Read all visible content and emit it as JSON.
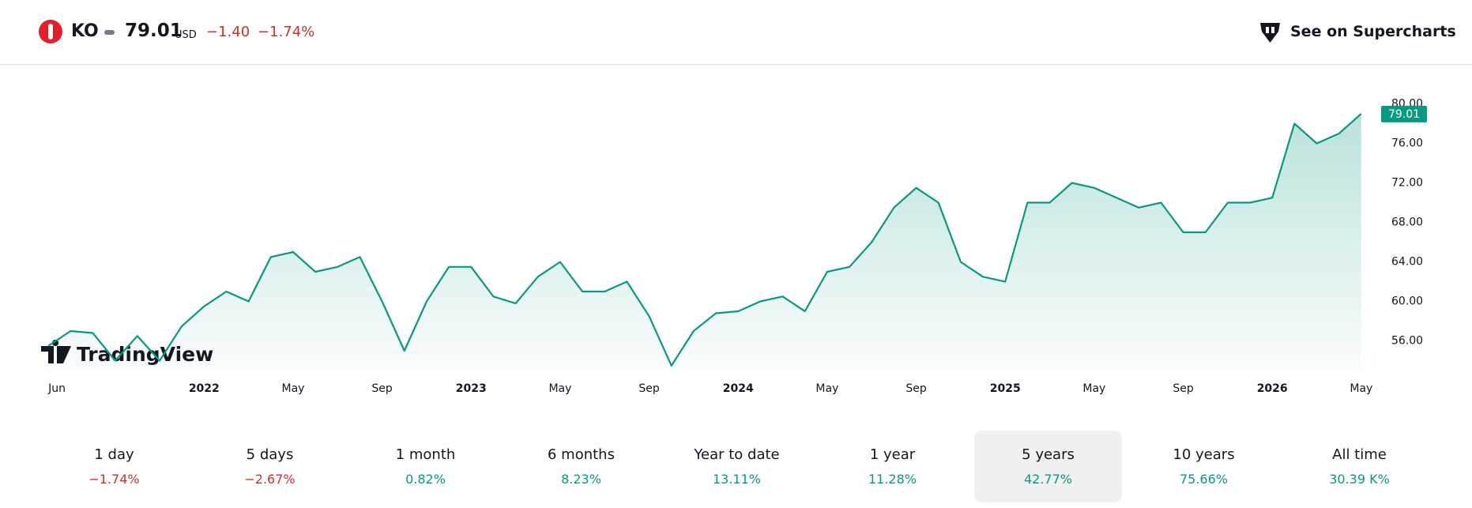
{
  "header": {
    "symbol": "KO",
    "price": "79.01",
    "currency": "USD",
    "change": "−1.40",
    "change_percent": "−1.74%",
    "link": "See on Supercharts"
  },
  "watermark": "TradingView",
  "chart_data": {
    "type": "line",
    "x": [
      "2021-06",
      "2021-07",
      "2021-08",
      "2021-09",
      "2021-10",
      "2021-11",
      "2021-12",
      "2022-01",
      "2022-02",
      "2022-03",
      "2022-04",
      "2022-05",
      "2022-06",
      "2022-07",
      "2022-08",
      "2022-09",
      "2022-10",
      "2022-11",
      "2022-12",
      "2023-01",
      "2023-02",
      "2023-03",
      "2023-04",
      "2023-05",
      "2023-06",
      "2023-07",
      "2023-08",
      "2023-09",
      "2023-10",
      "2023-11",
      "2023-12",
      "2024-01",
      "2024-02",
      "2024-03",
      "2024-04",
      "2024-05",
      "2024-06",
      "2024-07",
      "2024-08",
      "2024-09",
      "2024-10",
      "2024-11",
      "2024-12",
      "2025-01",
      "2025-02",
      "2025-03",
      "2025-04",
      "2025-05",
      "2025-06",
      "2025-07",
      "2025-08",
      "2025-09",
      "2025-10",
      "2025-11",
      "2025-12",
      "2026-01",
      "2026-02",
      "2026-03",
      "2026-04",
      "2026-05"
    ],
    "series": [
      {
        "color": "#089981",
        "values": [
          55.5,
          57.0,
          56.8,
          54.0,
          56.5,
          54.0,
          57.5,
          59.5,
          61.0,
          60.0,
          64.5,
          65.0,
          63.0,
          63.5,
          64.5,
          60.0,
          55.0,
          60.0,
          63.5,
          63.5,
          60.5,
          59.8,
          62.5,
          64.0,
          61.0,
          61.0,
          62.0,
          58.5,
          53.5,
          57.0,
          58.8,
          59.0,
          60.0,
          60.5,
          59.0,
          63.0,
          63.5,
          66.0,
          69.5,
          71.5,
          70.0,
          64.0,
          62.5,
          62.0,
          70.0,
          70.0,
          72.0,
          71.5,
          70.5,
          69.5,
          70.0,
          67.0,
          67.0,
          70.0,
          70.0,
          70.5,
          78.0,
          76.0,
          77.0,
          79.01
        ]
      }
    ],
    "xlim": [
      "2021-05",
      "2026-06"
    ],
    "xticks": [
      {
        "value": "2021-06",
        "label": "Jun"
      },
      {
        "value": "2022-01",
        "label": "2022"
      },
      {
        "value": "2022-05",
        "label": "May"
      },
      {
        "value": "2022-09",
        "label": "Sep"
      },
      {
        "value": "2023-01",
        "label": "2023"
      },
      {
        "value": "2023-05",
        "label": "May"
      },
      {
        "value": "2023-09",
        "label": "Sep"
      },
      {
        "value": "2024-01",
        "label": "2024"
      },
      {
        "value": "2024-05",
        "label": "May"
      },
      {
        "value": "2024-09",
        "label": "Sep"
      },
      {
        "value": "2025-01",
        "label": "2025"
      },
      {
        "value": "2025-05",
        "label": "May"
      },
      {
        "value": "2025-09",
        "label": "Sep"
      },
      {
        "value": "2026-01",
        "label": "2026"
      },
      {
        "value": "2026-05",
        "label": "May"
      }
    ],
    "ylim": [
      53,
      83.4
    ],
    "yticks": [
      {
        "value": 56,
        "label": "56.00"
      },
      {
        "value": 60,
        "label": "60.00"
      },
      {
        "value": 64,
        "label": "64.00"
      },
      {
        "value": 68,
        "label": "68.00"
      },
      {
        "value": 72,
        "label": "72.00"
      },
      {
        "value": 76,
        "label": "76.00"
      },
      {
        "value": 80,
        "label": "80.00"
      }
    ]
  },
  "periods": [
    {
      "label": "1 day",
      "value": "−1.74%"
    },
    {
      "label": "5 days",
      "value": "−2.67%"
    },
    {
      "label": "1 month",
      "value": "0.82%"
    },
    {
      "label": "6 months",
      "value": "8.23%"
    },
    {
      "label": "Year to date",
      "value": "13.11%"
    },
    {
      "label": "1 year",
      "value": "11.28%"
    },
    {
      "label": "5 years",
      "value": "42.77%"
    },
    {
      "label": "10 years",
      "value": "75.66%"
    },
    {
      "label": "All time",
      "value": "30.39 K%"
    }
  ],
  "selected_period": 6
}
